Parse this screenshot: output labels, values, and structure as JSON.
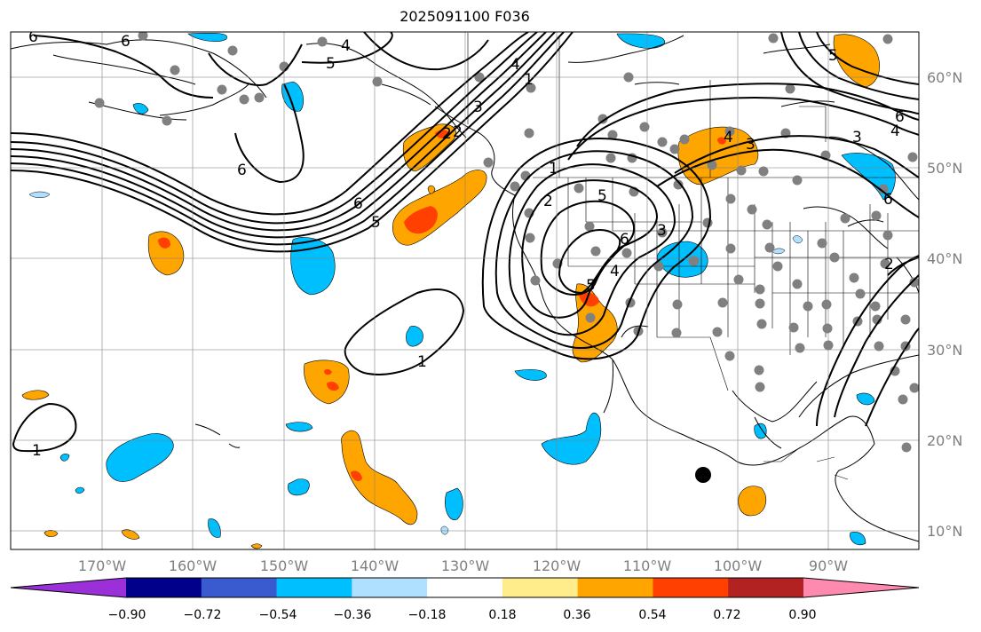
{
  "title": "2025091100 F036",
  "map": {
    "projection": "PlateCarree",
    "lon_range": [
      -180,
      -80
    ],
    "lat_range": [
      8,
      65
    ],
    "lon_ticks": [
      "170°W",
      "160°W",
      "150°W",
      "140°W",
      "130°W",
      "120°W",
      "110°W",
      "100°W",
      "90°W"
    ],
    "lat_ticks": [
      "60°N",
      "50°N",
      "40°N",
      "30°N",
      "20°N",
      "10°N"
    ],
    "gridlines": true,
    "marker": {
      "lon": -103.3,
      "lat": 16.2,
      "label": ""
    }
  },
  "colorbar": {
    "ticks": [
      "−0.90",
      "−0.72",
      "−0.54",
      "−0.36",
      "−0.18",
      "0.18",
      "0.36",
      "0.54",
      "0.72",
      "0.90"
    ],
    "colors": [
      "#9b30d9",
      "#00008b",
      "#3a5bd0",
      "#00bfff",
      "#b0e0ff",
      "#ffffff",
      "#ffec8b",
      "#ffa500",
      "#ff4000",
      "#b22222",
      "#ff8ab0"
    ],
    "extend": "both"
  },
  "contour_labels": [
    "6",
    "6",
    "6",
    "4",
    "5",
    "6",
    "5",
    "4",
    "3",
    "2",
    "1",
    "1",
    "2",
    "3",
    "4",
    "5",
    "6",
    "6",
    "5",
    "4",
    "3",
    "6",
    "4",
    "3",
    "2",
    "2",
    "1",
    "1",
    "5"
  ]
}
